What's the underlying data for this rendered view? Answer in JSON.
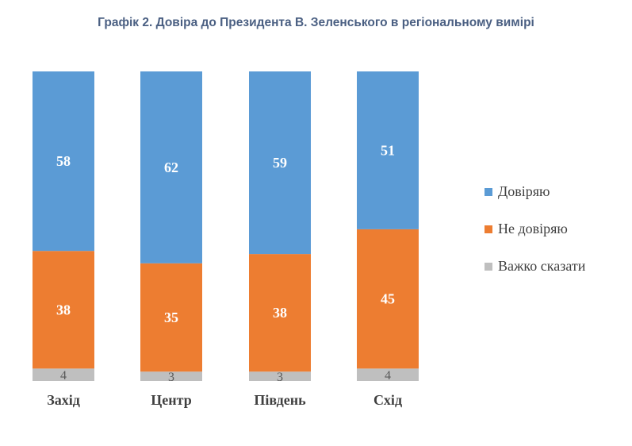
{
  "chart_data": {
    "type": "bar",
    "stacked": true,
    "title": "Графік 2. Довіра до Президента В. Зеленського в регіональному вимірі",
    "categories": [
      "Захід",
      "Центр",
      "Південь",
      "Схід"
    ],
    "series": [
      {
        "name": "Важко сказати",
        "values": [
          4,
          3,
          3,
          4
        ],
        "color": "#bfbfbf"
      },
      {
        "name": "Не довіряю",
        "values": [
          38,
          35,
          38,
          45
        ],
        "color": "#ed7d31"
      },
      {
        "name": "Довіряю",
        "values": [
          58,
          62,
          59,
          51
        ],
        "color": "#5b9bd5"
      }
    ],
    "legend_order": [
      "Довіряю",
      "Не довіряю",
      "Важко сказати"
    ],
    "legend_position": "right",
    "ylim": [
      0,
      100
    ]
  }
}
